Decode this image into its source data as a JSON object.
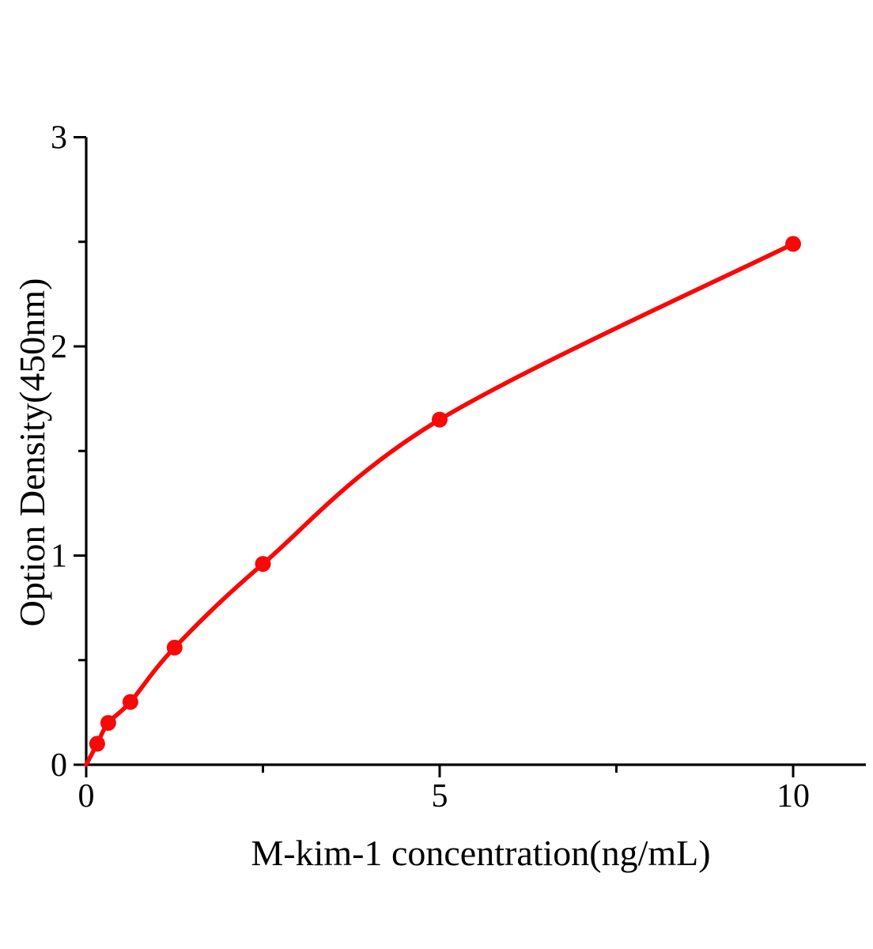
{
  "figure": {
    "background": "#ffffff"
  },
  "chart_data": {
    "type": "scatter",
    "title": "",
    "xlabel": "M-kim-1 concentration(ng/mL)",
    "ylabel": "Option Density(450nm)",
    "x": [
      0.156,
      0.3125,
      0.625,
      1.25,
      2.5,
      5,
      10
    ],
    "y": [
      0.1,
      0.2,
      0.3,
      0.56,
      0.96,
      1.65,
      2.49
    ],
    "curve_start": {
      "x": 0,
      "y": 0
    },
    "xlim": [
      0,
      11
    ],
    "ylim": [
      0,
      3
    ],
    "x_major_ticks": [
      0,
      5,
      10
    ],
    "x_minor_ticks": [
      2.5,
      7.5
    ],
    "y_major_ticks": [
      0,
      1,
      2,
      3
    ],
    "y_minor_ticks": [
      0.5,
      1.5,
      2.5
    ],
    "grid": false,
    "legend": "none",
    "line_color": "#f90808",
    "marker_color": "#f90808",
    "axis_color": "#000000"
  }
}
